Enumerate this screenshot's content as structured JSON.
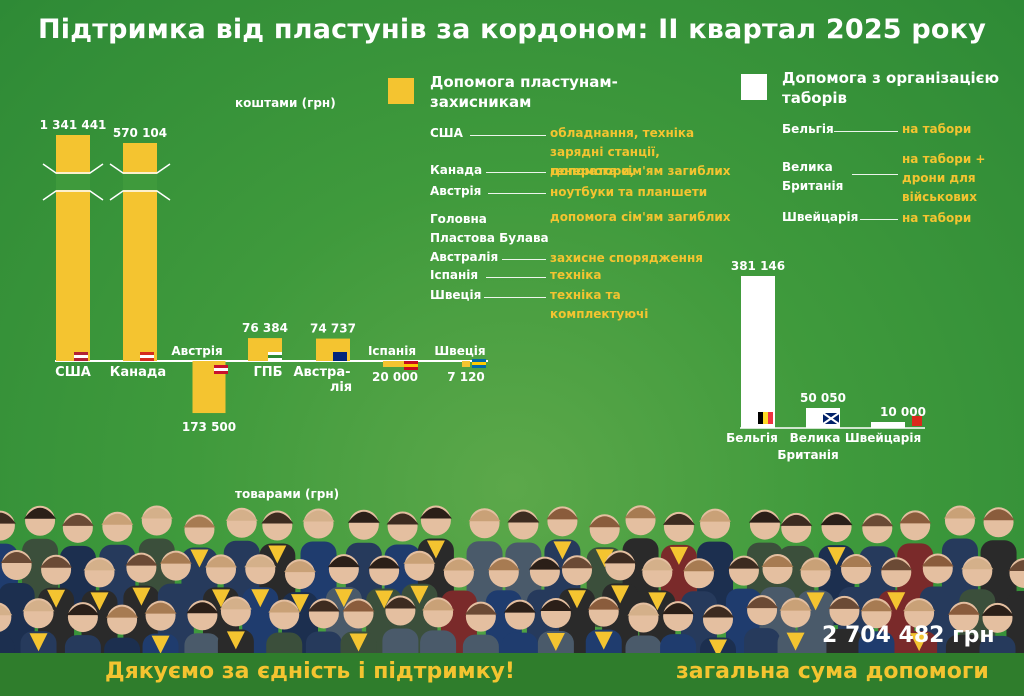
{
  "title": "Підтримка від пластунів за кордоном: ІІ квартал 2025 року",
  "axis_top_caption": "коштами (грн)",
  "axis_bottom_caption": "товарами (грн)",
  "legend": {
    "yellow": "Допомога пластунам-захисникам",
    "white": "Допомога з організацією таборів"
  },
  "colors": {
    "yellow": "#f4c430",
    "white": "#ffffff",
    "background": "#3f9a3c"
  },
  "yellow_list": [
    {
      "country": "США",
      "desc": "обладнання, техніка зарядні станції, генератори,"
    },
    {
      "country": "Канада",
      "desc": "допомога сім'ям загиблих"
    },
    {
      "country": "Австрія",
      "desc": "ноутбуки та планшети"
    },
    {
      "country": "Головна Пластова Булава",
      "desc": "допомога сім'ям загиблих"
    },
    {
      "country": "Австралія",
      "desc": "захисне спорядження"
    },
    {
      "country": "Іспанія",
      "desc": "техніка"
    },
    {
      "country": "Швеція",
      "desc": "техніка та комплектуючі"
    }
  ],
  "white_list": [
    {
      "country": "Бельгія",
      "desc": "на табори"
    },
    {
      "country": "Велика Британія",
      "desc": "на табори + дрони для військових"
    },
    {
      "country": "Швейцарія",
      "desc": "на табори"
    }
  ],
  "chart_data": [
    {
      "type": "bar",
      "series": [
        {
          "name": "Допомога пластунам-захисникам",
          "values": [
            1341441,
            570104,
            -173500,
            76384,
            74737,
            -20000,
            -7120
          ]
        }
      ],
      "categories": [
        "США",
        "Канада",
        "Австрія",
        "ГПБ",
        "Австра-лія",
        "Іспанія",
        "Швеція"
      ],
      "value_labels": [
        "1 341 441",
        "570 104",
        "173 500",
        "76 384",
        "74 737",
        "20 000",
        "7 120"
      ],
      "note": "positive = коштами (грн), negative = товарами (грн); США and Канада bars axis-broken"
    },
    {
      "type": "bar",
      "series": [
        {
          "name": "Допомога з організацією таборів",
          "values": [
            381146,
            50050,
            10000
          ]
        }
      ],
      "categories": [
        "Бельгія",
        "Велика Британія",
        "Швейцарія"
      ],
      "value_labels": [
        "381 146",
        "50 050",
        "10 000"
      ]
    }
  ],
  "total": {
    "value": "2 704 482 грн",
    "label": "загальна сума допомоги"
  },
  "thanks": "Дякуємо за єдність і підтримку!"
}
